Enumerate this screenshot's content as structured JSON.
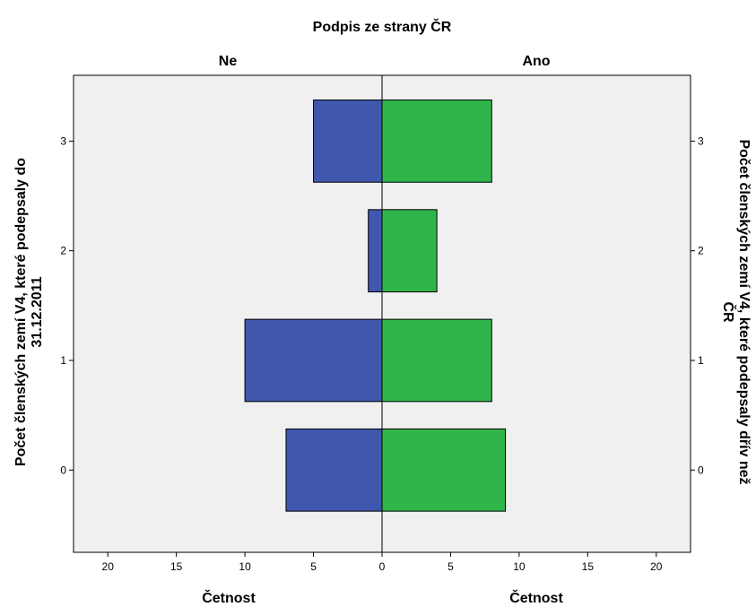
{
  "chart_data": {
    "type": "bar",
    "subtype": "population-pyramid",
    "title": "Podpis ze strany ČR",
    "panels": [
      "Ne",
      "Ano"
    ],
    "categories": [
      "0",
      "1",
      "2",
      "3"
    ],
    "series": [
      {
        "name": "Ne",
        "values": [
          7,
          10,
          1,
          5
        ],
        "color": "#3f58ad"
      },
      {
        "name": "Ano",
        "values": [
          9,
          8,
          4,
          8
        ],
        "color": "#2fb54a"
      }
    ],
    "xlabel_left": "Četnost",
    "xlabel_right": "Četnost",
    "ylabel_left": [
      "Počet členských zemí V4, které podepsaly do",
      "31.12.2011"
    ],
    "ylabel_right": [
      "Počet členských zemí V4, které podepsaly dřív než",
      "ČR"
    ],
    "x_ticks": [
      "20",
      "15",
      "10",
      "5",
      "0",
      "5",
      "10",
      "15",
      "20"
    ],
    "xlim": [
      0,
      22.5
    ],
    "ylim": [
      -0.75,
      3.6
    ],
    "plot_background": "#f0f0f0",
    "grid": false
  }
}
